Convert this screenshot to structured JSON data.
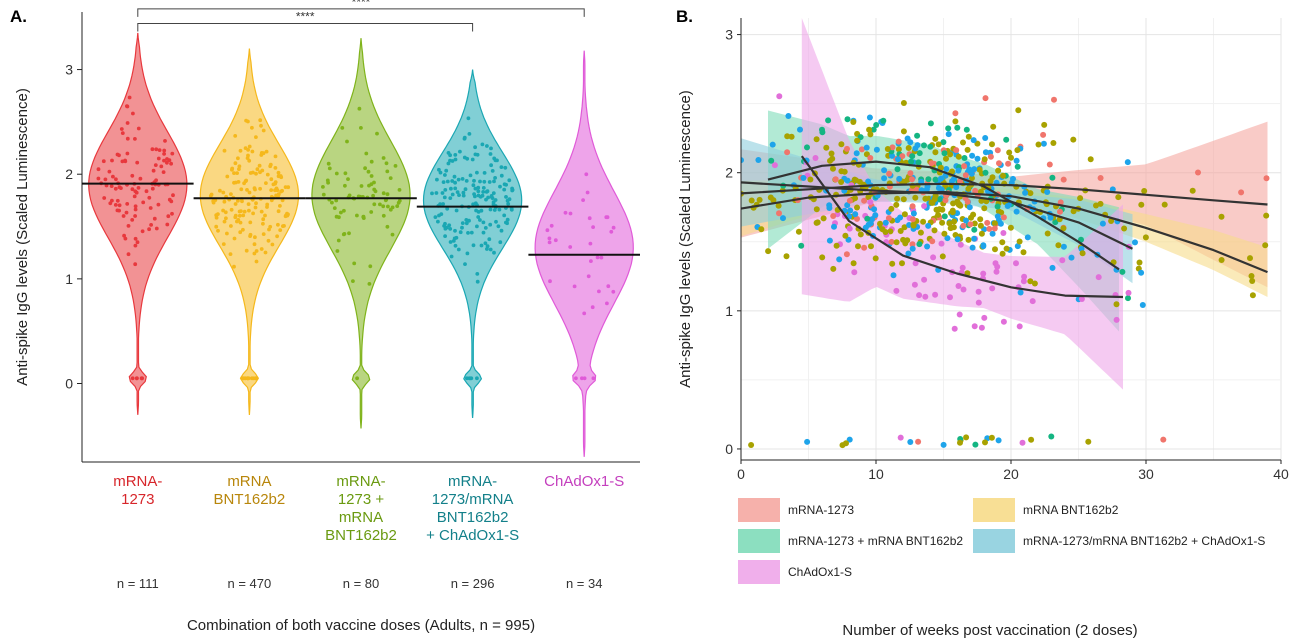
{
  "chart_data": [
    {
      "type": "violin",
      "panel_label": "A.",
      "ylabel": "Anti-spike IgG levels (Scaled Luminescence)",
      "xlabel": "Combination of both vaccine doses (Adults, n = 995)",
      "ylim": [
        -0.75,
        3.55
      ],
      "yticks": [
        0,
        1,
        2,
        3
      ],
      "groups": [
        {
          "label_lines": [
            "mRNA-",
            "1273"
          ],
          "n_label": "n = 111",
          "n": 111,
          "color": "#e8383d",
          "text_color": "#d7262b",
          "mean": 1.91,
          "min": -0.3,
          "max": 3.35,
          "peak": 1.9
        },
        {
          "label_lines": [
            "mRNA",
            "BNT162b2"
          ],
          "n_label": "n = 470",
          "n": 470,
          "color": "#f5b81c",
          "text_color": "#b8860b",
          "mean": 1.77,
          "min": -0.3,
          "max": 3.2,
          "peak": 1.8
        },
        {
          "label_lines": [
            "mRNA-",
            "1273 +",
            "mRNA",
            "BNT162b2"
          ],
          "n_label": "n = 80",
          "n": 80,
          "color": "#7fb31a",
          "text_color": "#6a9a10",
          "mean": 1.77,
          "min": -0.43,
          "max": 3.3,
          "peak": 1.8
        },
        {
          "label_lines": [
            "mRNA-",
            "1273/mRNA",
            "BNT162b2",
            "+ ChAdOx1-S"
          ],
          "n_label": "n = 296",
          "n": 296,
          "color": "#1aa7b3",
          "text_color": "#13808a",
          "mean": 1.69,
          "min": -0.33,
          "max": 3.0,
          "peak": 1.75
        },
        {
          "label_lines": [
            "ChAdOx1-S"
          ],
          "n_label": "n = 34",
          "n": 34,
          "color": "#e05ad8",
          "text_color": "#c43fbe",
          "mean": 1.23,
          "min": -0.7,
          "max": 3.18,
          "peak": 1.3
        }
      ],
      "comparisons": [
        {
          "from": 0,
          "to": 3,
          "label": "****",
          "y": 3.44
        },
        {
          "from": 0,
          "to": 4,
          "label": "****",
          "y": 3.58
        }
      ]
    },
    {
      "type": "scatter",
      "panel_label": "B.",
      "ylabel": "Anti-spike IgG levels (Scaled Luminescence)",
      "xlabel": "Number of weeks post vaccination (2 doses)",
      "xlim": [
        0,
        40
      ],
      "ylim": [
        -0.08,
        3.12
      ],
      "xticks": [
        0,
        10,
        20,
        30,
        40
      ],
      "yticks": [
        0,
        1,
        2,
        3
      ],
      "grid": true,
      "legend_position": "bottom",
      "series": [
        {
          "name": "mRNA-1273",
          "color": "#f0756c",
          "fill": "#f5a8a2",
          "fit": [
            [
              0,
              1.85
            ],
            [
              5,
              1.88
            ],
            [
              10,
              1.91
            ],
            [
              15,
              1.92
            ],
            [
              20,
              1.91
            ],
            [
              25,
              1.88
            ],
            [
              30,
              1.84
            ],
            [
              35,
              1.8
            ],
            [
              39,
              1.77
            ]
          ],
          "band": [
            [
              0,
              0.32
            ],
            [
              10,
              0.12
            ],
            [
              20,
              0.06
            ],
            [
              30,
              0.22
            ],
            [
              39,
              0.6
            ]
          ]
        },
        {
          "name": "mRNA BNT162b2",
          "color": "#a8a200",
          "fill": "#f7dc8a",
          "fit": [
            [
              0,
              1.74
            ],
            [
              5,
              1.82
            ],
            [
              10,
              1.85
            ],
            [
              15,
              1.86
            ],
            [
              20,
              1.83
            ],
            [
              25,
              1.74
            ],
            [
              30,
              1.6
            ],
            [
              35,
              1.44
            ],
            [
              39,
              1.28
            ]
          ],
          "band": [
            [
              0,
              0.2
            ],
            [
              10,
              0.06
            ],
            [
              20,
              0.05
            ],
            [
              30,
              0.1
            ],
            [
              39,
              0.18
            ]
          ]
        },
        {
          "name": "mRNA-1273 + mRNA BNT162b2",
          "color": "#14b582",
          "fill": "#7fdcb9",
          "fit": [
            [
              2,
              1.95
            ],
            [
              6,
              2.05
            ],
            [
              10,
              2.08
            ],
            [
              14,
              2.04
            ],
            [
              18,
              1.9
            ],
            [
              22,
              1.68
            ],
            [
              25,
              1.5
            ],
            [
              28,
              1.3
            ]
          ],
          "band": [
            [
              2,
              0.5
            ],
            [
              8,
              0.2
            ],
            [
              16,
              0.15
            ],
            [
              22,
              0.2
            ],
            [
              28,
              0.45
            ]
          ]
        },
        {
          "name": "mRNA-1273/mRNA BNT162b2 + ChAdOx1-S",
          "color": "#1ea4ea",
          "fill": "#8ecfde",
          "fit": [
            [
              0,
              1.93
            ],
            [
              5,
              1.9
            ],
            [
              10,
              1.87
            ],
            [
              15,
              1.85
            ],
            [
              20,
              1.79
            ],
            [
              25,
              1.64
            ],
            [
              29,
              1.45
            ]
          ],
          "band": [
            [
              0,
              0.32
            ],
            [
              10,
              0.08
            ],
            [
              20,
              0.06
            ],
            [
              29,
              0.25
            ]
          ]
        },
        {
          "name": "ChAdOx1-S",
          "color": "#e16fd9",
          "fill": "#eea6e9",
          "fit": [
            [
              4.5,
              2.12
            ],
            [
              8,
              1.65
            ],
            [
              12,
              1.4
            ],
            [
              16,
              1.27
            ],
            [
              20,
              1.17
            ],
            [
              24,
              1.11
            ],
            [
              28.3,
              1.1
            ]
          ],
          "band": [
            [
              4.5,
              1.0
            ],
            [
              10,
              0.35
            ],
            [
              18,
              0.2
            ],
            [
              24,
              0.28
            ],
            [
              28.3,
              0.67
            ]
          ]
        }
      ]
    }
  ]
}
